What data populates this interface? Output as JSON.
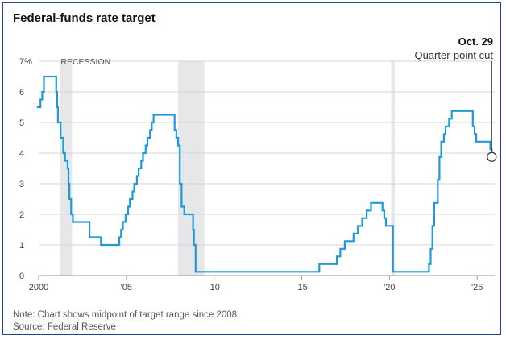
{
  "title": "Federal-funds rate target",
  "note": "Note: Chart shows midpoint of target range since 2008.",
  "source": "Source: Federal Reserve",
  "colors": {
    "line": "#1f9ad6",
    "grid": "#d6d6d6",
    "recession": "#e6e7e9",
    "text": "#333333"
  },
  "chart_data": {
    "type": "line",
    "ylim": [
      0,
      7
    ],
    "xlim": [
      2000,
      2026
    ],
    "y_ticks": [
      0,
      1,
      2,
      3,
      4,
      5,
      6,
      7
    ],
    "y_tick_labels": [
      "0",
      "1",
      "2",
      "3",
      "4",
      "5",
      "6",
      "7%"
    ],
    "x_ticks": [
      2000,
      2005,
      2010,
      2015,
      2020,
      2025
    ],
    "x_tick_labels": [
      "2000",
      "'05",
      "'10",
      "'15",
      "'20",
      "'25"
    ],
    "recession_label": "RECESSION",
    "recessions": [
      [
        2001.2,
        2001.9
      ],
      [
        2007.95,
        2009.45
      ],
      [
        2020.1,
        2020.3
      ]
    ],
    "series": [
      {
        "values": [
          [
            1999.9,
            5.5
          ],
          [
            2000.1,
            5.75
          ],
          [
            2000.2,
            6.0
          ],
          [
            2000.3,
            6.5
          ],
          [
            2000.9,
            6.5
          ],
          [
            2001.0,
            6.0
          ],
          [
            2001.05,
            5.5
          ],
          [
            2001.1,
            5.0
          ],
          [
            2001.25,
            4.5
          ],
          [
            2001.4,
            4.0
          ],
          [
            2001.5,
            3.75
          ],
          [
            2001.65,
            3.5
          ],
          [
            2001.7,
            3.0
          ],
          [
            2001.75,
            2.5
          ],
          [
            2001.85,
            2.0
          ],
          [
            2001.95,
            1.75
          ],
          [
            2002.85,
            1.75
          ],
          [
            2002.9,
            1.25
          ],
          [
            2003.5,
            1.25
          ],
          [
            2003.55,
            1.0
          ],
          [
            2004.5,
            1.0
          ],
          [
            2004.6,
            1.25
          ],
          [
            2004.7,
            1.5
          ],
          [
            2004.8,
            1.75
          ],
          [
            2004.95,
            2.0
          ],
          [
            2005.1,
            2.25
          ],
          [
            2005.2,
            2.5
          ],
          [
            2005.35,
            2.75
          ],
          [
            2005.45,
            3.0
          ],
          [
            2005.6,
            3.25
          ],
          [
            2005.7,
            3.5
          ],
          [
            2005.85,
            3.75
          ],
          [
            2005.95,
            4.0
          ],
          [
            2006.1,
            4.25
          ],
          [
            2006.2,
            4.5
          ],
          [
            2006.35,
            4.75
          ],
          [
            2006.45,
            5.0
          ],
          [
            2006.55,
            5.25
          ],
          [
            2007.7,
            5.25
          ],
          [
            2007.75,
            4.75
          ],
          [
            2007.85,
            4.5
          ],
          [
            2007.95,
            4.25
          ],
          [
            2008.05,
            3.0
          ],
          [
            2008.15,
            2.25
          ],
          [
            2008.3,
            2.0
          ],
          [
            2008.75,
            2.0
          ],
          [
            2008.8,
            1.5
          ],
          [
            2008.85,
            1.0
          ],
          [
            2008.95,
            0.125
          ],
          [
            2015.95,
            0.125
          ],
          [
            2016.0,
            0.375
          ],
          [
            2016.95,
            0.375
          ],
          [
            2017.0,
            0.625
          ],
          [
            2017.2,
            0.875
          ],
          [
            2017.45,
            1.125
          ],
          [
            2017.95,
            1.375
          ],
          [
            2018.2,
            1.625
          ],
          [
            2018.45,
            1.875
          ],
          [
            2018.7,
            2.125
          ],
          [
            2018.95,
            2.375
          ],
          [
            2019.55,
            2.375
          ],
          [
            2019.6,
            2.125
          ],
          [
            2019.7,
            1.875
          ],
          [
            2019.8,
            1.625
          ],
          [
            2020.15,
            1.625
          ],
          [
            2020.2,
            0.125
          ],
          [
            2022.2,
            0.125
          ],
          [
            2022.25,
            0.375
          ],
          [
            2022.35,
            0.875
          ],
          [
            2022.45,
            1.625
          ],
          [
            2022.55,
            2.375
          ],
          [
            2022.75,
            3.125
          ],
          [
            2022.85,
            3.875
          ],
          [
            2022.95,
            4.375
          ],
          [
            2023.1,
            4.625
          ],
          [
            2023.2,
            4.875
          ],
          [
            2023.4,
            5.125
          ],
          [
            2023.55,
            5.375
          ],
          [
            2024.7,
            5.375
          ],
          [
            2024.75,
            4.875
          ],
          [
            2024.85,
            4.625
          ],
          [
            2024.95,
            4.375
          ],
          [
            2025.7,
            4.375
          ],
          [
            2025.75,
            4.125
          ],
          [
            2025.83,
            3.875
          ]
        ]
      }
    ],
    "annotation": {
      "date": "Oct. 29",
      "text": "Quarter-point cut",
      "x": 2025.83,
      "y": 3.875
    }
  }
}
